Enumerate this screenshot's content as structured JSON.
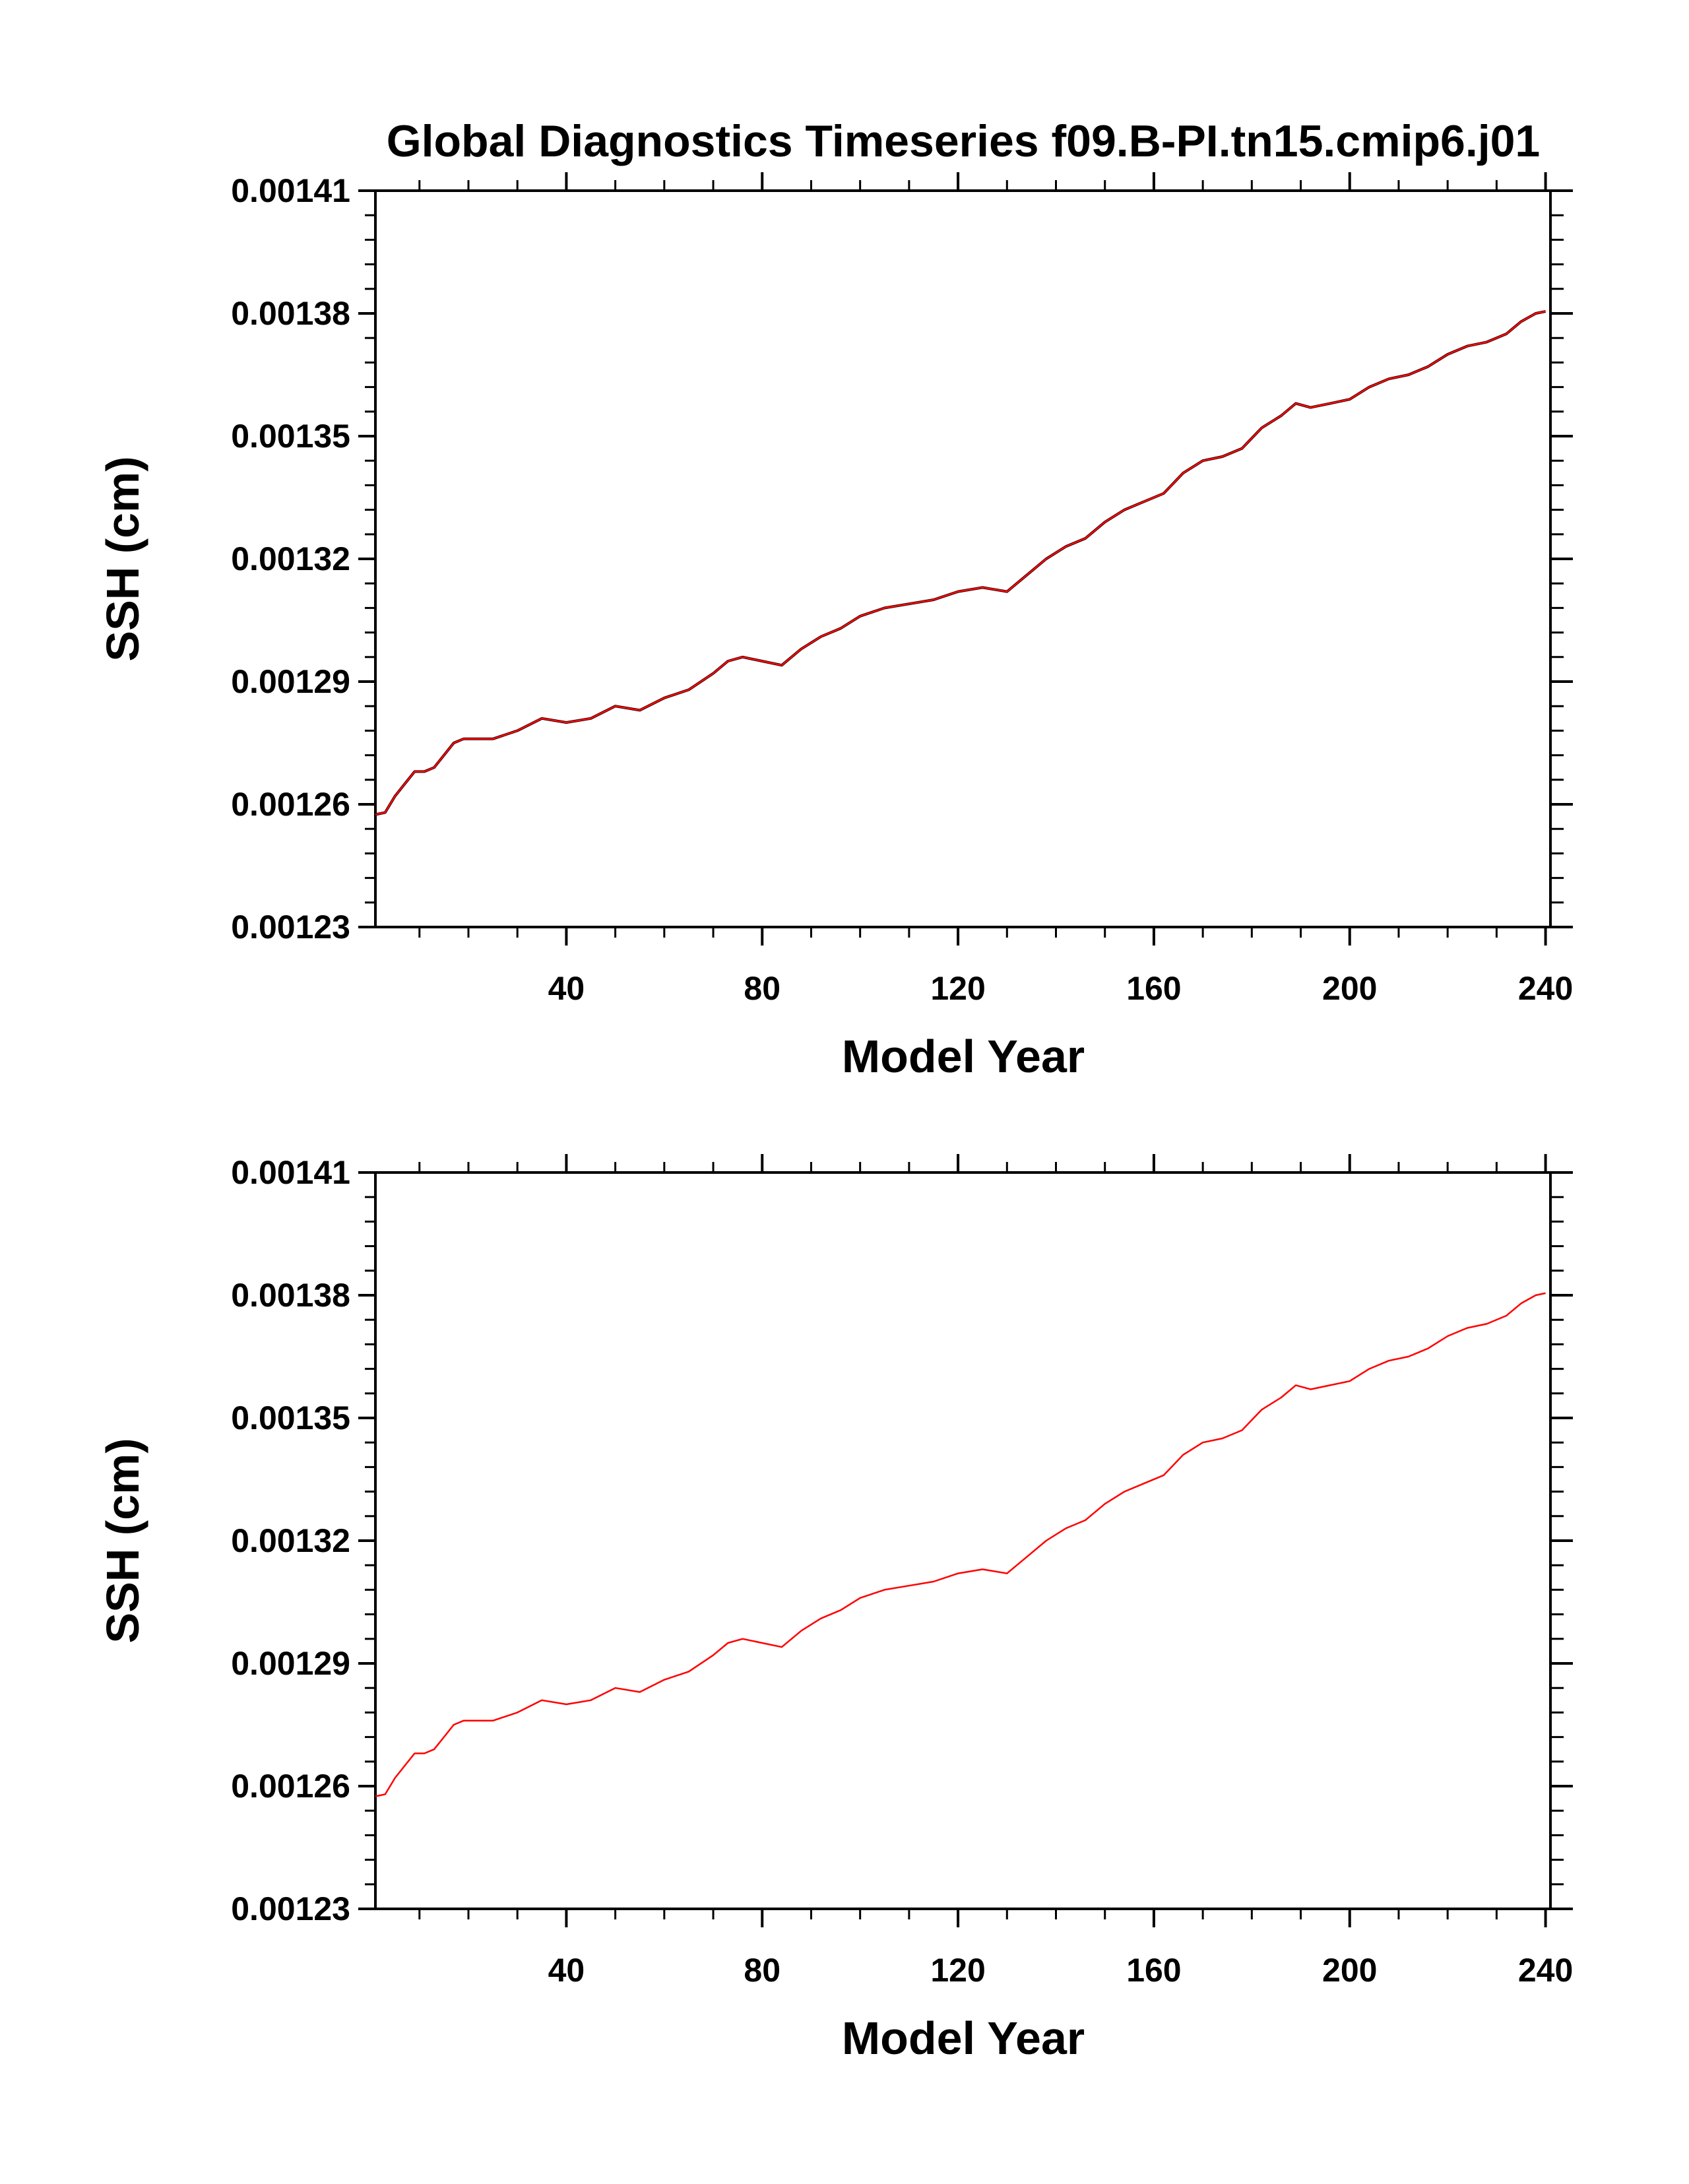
{
  "title": "Global Diagnostics Timeseries f09.B-PI.tn15.cmip6.j01",
  "colors": {
    "raw_line": "#000000",
    "smooth_line": "#ff0000",
    "axis": "#000000",
    "background": "#ffffff"
  },
  "chart_data": [
    {
      "type": "line",
      "panel": "top",
      "xlabel": "Model Year",
      "ylabel": "SSH (cm)",
      "xlim": [
        1,
        241
      ],
      "ylim": [
        0.00123,
        0.00141
      ],
      "x_ticks": [
        40,
        80,
        120,
        160,
        200,
        240
      ],
      "y_ticks": [
        0.00123,
        0.00126,
        0.00129,
        0.00132,
        0.00135,
        0.00138,
        0.00141
      ],
      "y_tick_labels": [
        "0.00123",
        "0.00126",
        "0.00129",
        "0.00132",
        "0.00135",
        "0.00138",
        "0.00141"
      ],
      "x_tick_labels": [
        "40",
        "80",
        "120",
        "160",
        "200",
        "240"
      ],
      "grid": false,
      "series": [
        {
          "kind": "raw",
          "color": "#000000",
          "x": [
            1,
            3,
            5,
            7,
            9,
            11,
            13,
            15,
            17,
            19,
            21,
            25,
            30,
            35,
            40,
            45,
            50,
            55,
            60,
            65,
            70,
            73,
            76,
            80,
            84,
            88,
            92,
            96,
            100,
            105,
            110,
            115,
            120,
            125,
            130,
            134,
            138,
            142,
            146,
            150,
            154,
            158,
            162,
            166,
            170,
            174,
            178,
            182,
            186,
            189,
            192,
            196,
            200,
            204,
            208,
            212,
            216,
            220,
            224,
            228,
            232,
            235,
            238,
            240
          ],
          "y": [
            0.0012575,
            0.001258,
            0.001262,
            0.001265,
            0.001268,
            0.001268,
            0.001269,
            0.001272,
            0.001275,
            0.001276,
            0.001276,
            0.001276,
            0.001278,
            0.001281,
            0.00128,
            0.001281,
            0.001284,
            0.001283,
            0.001286,
            0.001288,
            0.001292,
            0.001295,
            0.001296,
            0.001295,
            0.001294,
            0.001298,
            0.001301,
            0.001303,
            0.001306,
            0.001308,
            0.001309,
            0.00131,
            0.001312,
            0.001313,
            0.001312,
            0.001316,
            0.00132,
            0.001323,
            0.001325,
            0.001329,
            0.001332,
            0.001334,
            0.001336,
            0.001341,
            0.001344,
            0.001345,
            0.001347,
            0.001352,
            0.001355,
            0.001358,
            0.001357,
            0.001358,
            0.001359,
            0.001362,
            0.001364,
            0.001365,
            0.001367,
            0.00137,
            0.001372,
            0.001373,
            0.001375,
            0.001378,
            0.00138,
            0.0013805
          ]
        },
        {
          "kind": "smoothed",
          "color": "#ff0000",
          "x": [
            1,
            3,
            5,
            7,
            9,
            11,
            13,
            15,
            17,
            19,
            21,
            25,
            30,
            35,
            40,
            45,
            50,
            55,
            60,
            65,
            70,
            73,
            76,
            80,
            84,
            88,
            92,
            96,
            100,
            105,
            110,
            115,
            120,
            125,
            130,
            134,
            138,
            142,
            146,
            150,
            154,
            158,
            162,
            166,
            170,
            174,
            178,
            182,
            186,
            189,
            192,
            196,
            200,
            204,
            208,
            212,
            216,
            220,
            224,
            228,
            232,
            235,
            238,
            240
          ],
          "y": [
            0.0012575,
            0.001258,
            0.001262,
            0.001265,
            0.001268,
            0.001268,
            0.001269,
            0.001272,
            0.001275,
            0.001276,
            0.001276,
            0.001276,
            0.001278,
            0.001281,
            0.00128,
            0.001281,
            0.001284,
            0.001283,
            0.001286,
            0.001288,
            0.001292,
            0.001295,
            0.001296,
            0.001295,
            0.001294,
            0.001298,
            0.001301,
            0.001303,
            0.001306,
            0.001308,
            0.001309,
            0.00131,
            0.001312,
            0.001313,
            0.001312,
            0.001316,
            0.00132,
            0.001323,
            0.001325,
            0.001329,
            0.001332,
            0.001334,
            0.001336,
            0.001341,
            0.001344,
            0.001345,
            0.001347,
            0.001352,
            0.001355,
            0.001358,
            0.001357,
            0.001358,
            0.001359,
            0.001362,
            0.001364,
            0.001365,
            0.001367,
            0.00137,
            0.001372,
            0.001373,
            0.001375,
            0.001378,
            0.00138,
            0.0013805
          ]
        }
      ]
    },
    {
      "type": "line",
      "panel": "bottom",
      "xlabel": "Model Year",
      "ylabel": "SSH (cm)",
      "xlim": [
        1,
        241
      ],
      "ylim": [
        0.00123,
        0.00141
      ],
      "x_ticks": [
        40,
        80,
        120,
        160,
        200,
        240
      ],
      "y_ticks": [
        0.00123,
        0.00126,
        0.00129,
        0.00132,
        0.00135,
        0.00138,
        0.00141
      ],
      "y_tick_labels": [
        "0.00123",
        "0.00126",
        "0.00129",
        "0.00132",
        "0.00135",
        "0.00138",
        "0.00141"
      ],
      "x_tick_labels": [
        "40",
        "80",
        "120",
        "160",
        "200",
        "240"
      ],
      "grid": false,
      "series": [
        {
          "kind": "smoothed",
          "color": "#ff0000",
          "x": [
            1,
            3,
            5,
            7,
            9,
            11,
            13,
            15,
            17,
            19,
            21,
            25,
            30,
            35,
            40,
            45,
            50,
            55,
            60,
            65,
            70,
            73,
            76,
            80,
            84,
            88,
            92,
            96,
            100,
            105,
            110,
            115,
            120,
            125,
            130,
            134,
            138,
            142,
            146,
            150,
            154,
            158,
            162,
            166,
            170,
            174,
            178,
            182,
            186,
            189,
            192,
            196,
            200,
            204,
            208,
            212,
            216,
            220,
            224,
            228,
            232,
            235,
            238,
            240
          ],
          "y": [
            0.0012575,
            0.001258,
            0.001262,
            0.001265,
            0.001268,
            0.001268,
            0.001269,
            0.001272,
            0.001275,
            0.001276,
            0.001276,
            0.001276,
            0.001278,
            0.001281,
            0.00128,
            0.001281,
            0.001284,
            0.001283,
            0.001286,
            0.001288,
            0.001292,
            0.001295,
            0.001296,
            0.001295,
            0.001294,
            0.001298,
            0.001301,
            0.001303,
            0.001306,
            0.001308,
            0.001309,
            0.00131,
            0.001312,
            0.001313,
            0.001312,
            0.001316,
            0.00132,
            0.001323,
            0.001325,
            0.001329,
            0.001332,
            0.001334,
            0.001336,
            0.001341,
            0.001344,
            0.001345,
            0.001347,
            0.001352,
            0.001355,
            0.001358,
            0.001357,
            0.001358,
            0.001359,
            0.001362,
            0.001364,
            0.001365,
            0.001367,
            0.00137,
            0.001372,
            0.001373,
            0.001375,
            0.001378,
            0.00138,
            0.0013805
          ]
        }
      ]
    }
  ]
}
